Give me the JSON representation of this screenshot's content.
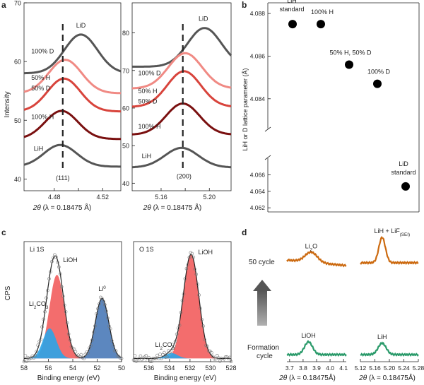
{
  "chart_data": [
    {
      "panel": "a",
      "type": "line",
      "ylabel": "Intensity",
      "xlabel_main": "2θ",
      "xlabel_sub": "(λ = 0.18475 Å)",
      "subplots": [
        {
          "reflection": "(111)",
          "xlim": [
            4.455,
            4.535
          ],
          "ylim": [
            38,
            70
          ],
          "x_ticks": [
            4.48,
            4.5,
            4.52
          ],
          "x_tick_labels": [
            "4.48",
            "",
            "4.52"
          ],
          "y_ticks": [
            40,
            50,
            60,
            70
          ],
          "dashed_line_x": 4.487,
          "series": [
            {
              "name": "LiD",
              "color": "#555555",
              "peak_x": 4.502,
              "peak_y": 64.6,
              "baseline_y": 58.0
            },
            {
              "name": "100% D",
              "color": "#f08a84",
              "peak_x": 4.489,
              "peak_y": 60.3,
              "baseline_y": 54.6
            },
            {
              "name": "50% H 50% D",
              "color": "#d8443c",
              "peak_x": 4.488,
              "peak_y": 57.1,
              "baseline_y": 51.5
            },
            {
              "name": "100% H",
              "color": "#7a1010",
              "peak_x": 4.486,
              "peak_y": 51.6,
              "baseline_y": 46.8
            },
            {
              "name": "LiH",
              "color": "#555555",
              "peak_x": 4.485,
              "peak_y": 45.8,
              "baseline_y": 42.1
            }
          ],
          "labels": [
            {
              "text": "LiD",
              "x": 4.502,
              "y": 65.8
            },
            {
              "text": "100% D",
              "x": 4.461,
              "y": 61.4
            },
            {
              "text": "50% H",
              "x": 4.461,
              "y": 56.9
            },
            {
              "text": "50% D",
              "x": 4.461,
              "y": 55.1
            },
            {
              "text": "100% H",
              "x": 4.461,
              "y": 50.2
            },
            {
              "text": "LiH",
              "x": 4.463,
              "y": 44.8
            },
            {
              "text": "(111)",
              "x": 4.487,
              "y": 39.8
            }
          ]
        },
        {
          "reflection": "(200)",
          "xlim": [
            5.136,
            5.218
          ],
          "ylim": [
            38,
            88
          ],
          "x_ticks": [
            5.16,
            5.18,
            5.2
          ],
          "x_tick_labels": [
            "5.16",
            "",
            "5.20"
          ],
          "y_ticks": [
            40,
            50,
            60,
            70,
            80
          ],
          "dashed_line_x": 5.178,
          "series": [
            {
              "name": "LiD",
              "color": "#555555",
              "peak_x": 5.196,
              "peak_y": 81.3,
              "baseline_y": 71.0
            },
            {
              "name": "100% D",
              "color": "#f08a84",
              "peak_x": 5.18,
              "peak_y": 74.6,
              "baseline_y": 65.2
            },
            {
              "name": "50% H 50% D",
              "color": "#d8443c",
              "peak_x": 5.179,
              "peak_y": 69.8,
              "baseline_y": 60.3
            },
            {
              "name": "100% H",
              "color": "#7a1010",
              "peak_x": 5.178,
              "peak_y": 61.2,
              "baseline_y": 52.9
            },
            {
              "name": "LiH",
              "color": "#555555",
              "peak_x": 5.177,
              "peak_y": 49.4,
              "baseline_y": 44.2
            }
          ],
          "labels": [
            {
              "text": "LiD",
              "x": 5.195,
              "y": 83.2
            },
            {
              "text": "100% D",
              "x": 5.141,
              "y": 68.7
            },
            {
              "text": "50% H",
              "x": 5.141,
              "y": 63.9
            },
            {
              "text": "50% D",
              "x": 5.141,
              "y": 61.2
            },
            {
              "text": "100% H",
              "x": 5.141,
              "y": 54.5
            },
            {
              "text": "LiH",
              "x": 5.144,
              "y": 46.6
            },
            {
              "text": "(200)",
              "x": 5.179,
              "y": 41.3
            }
          ]
        }
      ]
    },
    {
      "panel": "b",
      "type": "scatter",
      "ylabel": "LiH or D lattice parameter (Å)",
      "y_upper_ticks": [
        "4.088",
        "4.086",
        "4.084"
      ],
      "y_lower_ticks": [
        "4.066",
        "4.064",
        "4.062"
      ],
      "y_upper_range": [
        4.0828,
        4.0885
      ],
      "y_lower_range": [
        4.0615,
        4.0675
      ],
      "points": [
        {
          "label": "LiH standard",
          "category_index": 0,
          "y": 4.0875
        },
        {
          "label": "100% H",
          "category_index": 1,
          "y": 4.0875
        },
        {
          "label": "50% H, 50% D",
          "category_index": 2,
          "y": 4.0856
        },
        {
          "label": "100% D",
          "category_index": 3,
          "y": 4.0847
        },
        {
          "label": "LiD standard",
          "category_index": 4,
          "y": 4.0646
        }
      ]
    },
    {
      "panel": "c",
      "type": "area",
      "ylabel": "CPS",
      "xlabel": "Binding energy (eV)",
      "subplots": [
        {
          "title": "Li 1S",
          "xlim": [
            58,
            50
          ],
          "x_ticks": [
            58,
            56,
            54,
            52,
            50
          ],
          "x_tick_labels": [
            "58",
            "56",
            "54",
            "52",
            "50"
          ],
          "components": [
            {
              "name": "LiOH",
              "center": 55.3,
              "sigma": 0.62,
              "amplitude": 0.78,
              "color": "#f25d5d"
            },
            {
              "name": "Li2CO3",
              "center": 55.9,
              "sigma": 0.55,
              "amplitude": 0.28,
              "color": "#2aa4e8"
            },
            {
              "name": "Li0",
              "center": 51.6,
              "sigma": 0.55,
              "amplitude": 0.56,
              "color": "#4a7ab8"
            }
          ],
          "labels": [
            {
              "text": "LiOH",
              "x": 54.8,
              "y": 0.93
            },
            {
              "text": "Li",
              "sup": "0",
              "x": 51.9,
              "y": 0.66
            },
            {
              "text": "Li",
              "sub": "2",
              "rest": "CO",
              "sub2": "3",
              "x": 57.6,
              "y": 0.52
            }
          ]
        },
        {
          "title": "O 1S",
          "xlim": [
            537.5,
            528
          ],
          "x_ticks": [
            536,
            534,
            532,
            530,
            528
          ],
          "x_tick_labels": [
            "536",
            "534",
            "532",
            "530",
            "528"
          ],
          "components": [
            {
              "name": "LiOH",
              "center": 531.9,
              "sigma": 0.75,
              "amplitude": 0.97,
              "color": "#f25d5d"
            },
            {
              "name": "Li2CO3",
              "center": 533.8,
              "sigma": 0.6,
              "amplitude": 0.05,
              "color": "#2aa4e8"
            }
          ],
          "labels": [
            {
              "text": "LiOH",
              "x": 531.2,
              "y": 1.0
            },
            {
              "text": "Li",
              "sub": "2",
              "rest": "CO",
              "sub2": "3",
              "x": 535.4,
              "y": 0.14
            }
          ]
        }
      ]
    },
    {
      "panel": "d",
      "type": "line",
      "xlabel_main": "2θ",
      "xlabel_sub": "(λ = 0.18475Å)",
      "row_labels": {
        "top": "50 cycle",
        "bottom_line1": "Formation",
        "bottom_line2": "cycle"
      },
      "subplots": [
        {
          "xlim": [
            3.68,
            4.12
          ],
          "x_ticks": [
            3.7,
            3.8,
            3.9,
            4.0,
            4.1
          ],
          "x_tick_labels": [
            "3.7",
            "3.8",
            "3.9",
            "4.0",
            "4.1"
          ],
          "series": [
            {
              "name": "50 cycle",
              "label": "Li",
              "label_sub": "2",
              "label_rest": "O",
              "color": "#cc6a10",
              "peak_x": 3.86,
              "peak_height": 0.4,
              "sigma": 0.045
            },
            {
              "name": "Formation cycle",
              "label": "LiOH",
              "color": "#2a9a6a",
              "peak_x": 3.84,
              "peak_height": 0.5,
              "sigma": 0.03
            }
          ]
        },
        {
          "xlim": [
            5.12,
            5.28
          ],
          "x_ticks": [
            5.12,
            5.16,
            5.2,
            5.24,
            5.28
          ],
          "x_tick_labels": [
            "5.12",
            "5.16",
            "5.20",
            "5.24",
            "5.28"
          ],
          "series": [
            {
              "name": "50 cycle",
              "label": "LiH + LiF",
              "label_sub": "(SEI)",
              "color": "#cc6a10",
              "peak_x": 5.18,
              "peak_height": 1.0,
              "sigma": 0.009
            },
            {
              "name": "Formation cycle",
              "label": "LiH",
              "color": "#2a9a6a",
              "peak_x": 5.18,
              "peak_height": 0.45,
              "sigma": 0.011
            }
          ]
        }
      ]
    }
  ],
  "panels": {
    "a": "a",
    "b": "b",
    "c": "c",
    "d": "d"
  }
}
